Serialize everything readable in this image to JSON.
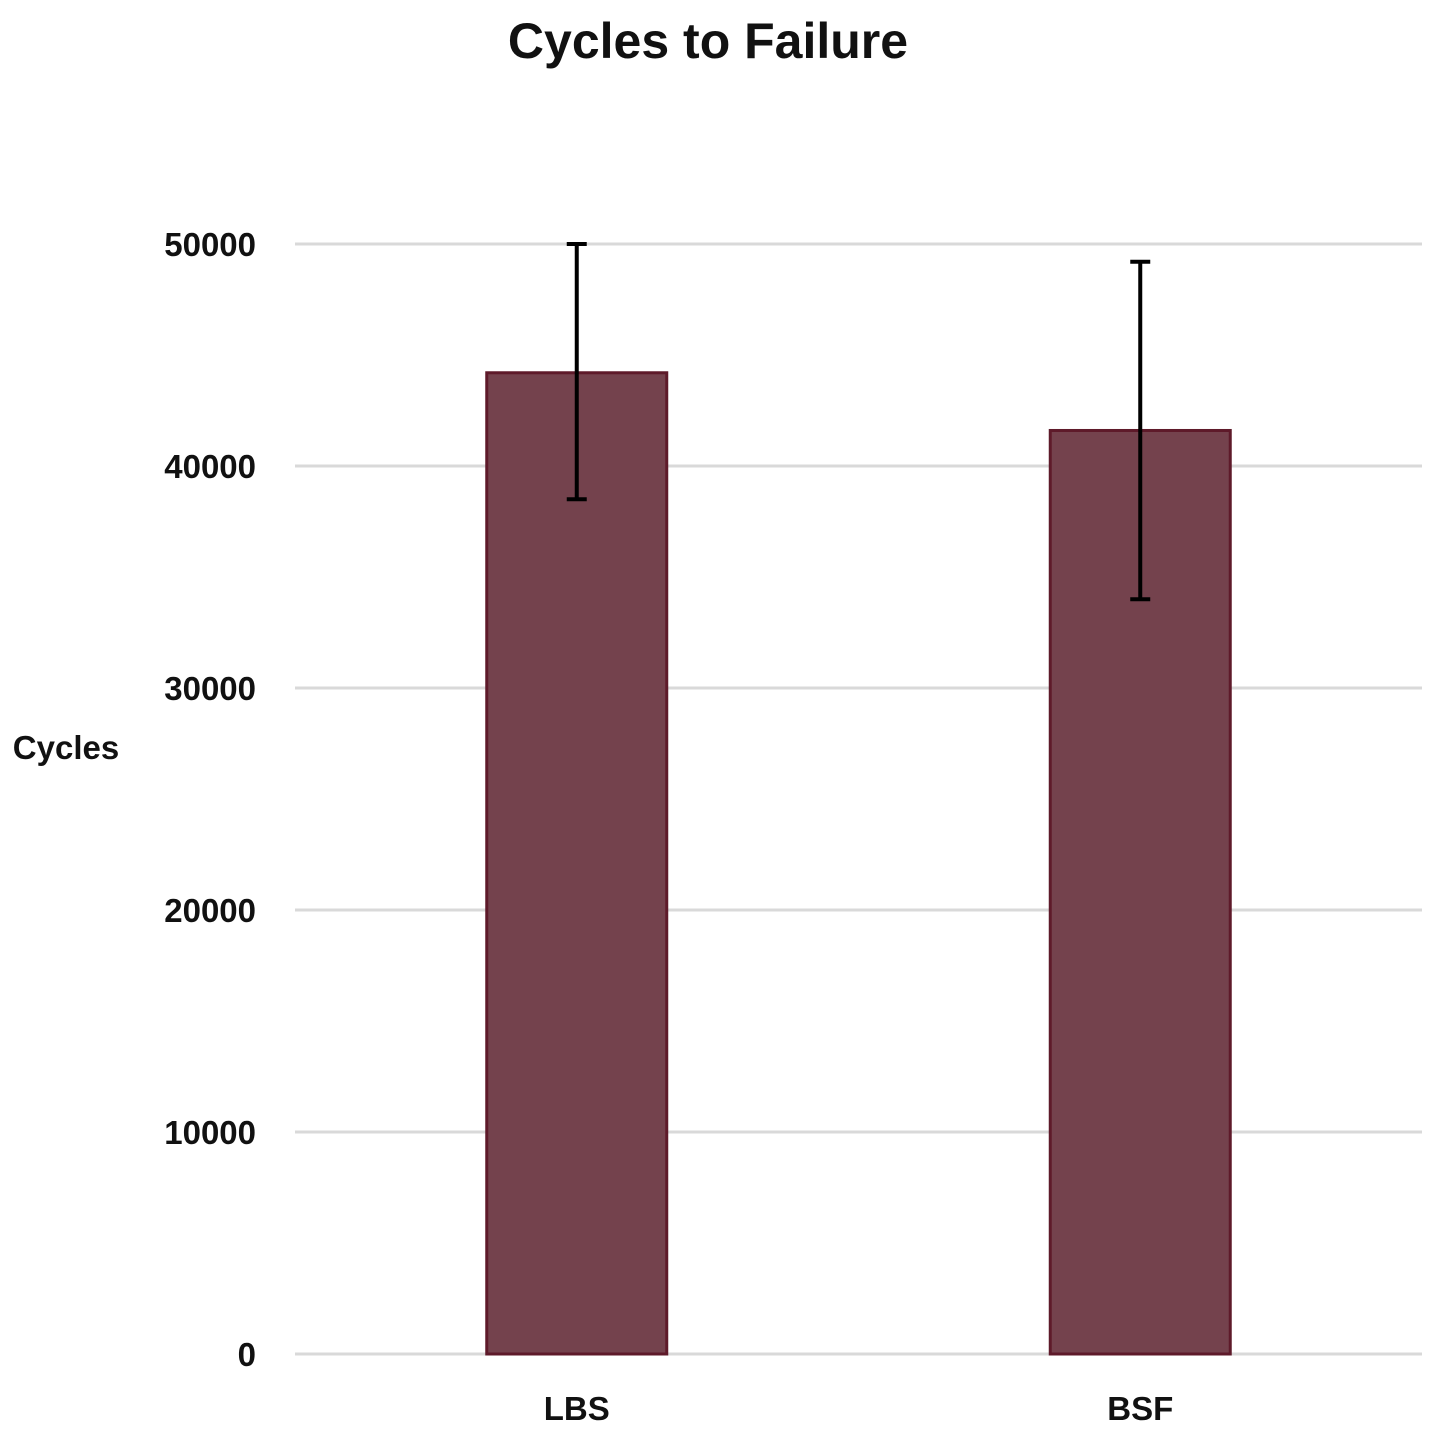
{
  "chart_data": {
    "type": "bar",
    "title": "Cycles to Failure",
    "xlabel": "",
    "ylabel": "Cycles",
    "categories": [
      "LBS",
      "BSF"
    ],
    "series": [
      {
        "values": [
          44200,
          41600
        ],
        "error_low": [
          38500,
          34000
        ],
        "error_high": [
          50000,
          49200
        ],
        "color": "#74424d",
        "edge_color": "#5e1a2a"
      }
    ],
    "ylim": [
      0,
      50000
    ],
    "yticks": [
      0,
      10000,
      20000,
      30000,
      40000,
      50000
    ],
    "grid": true,
    "legend": "none"
  }
}
